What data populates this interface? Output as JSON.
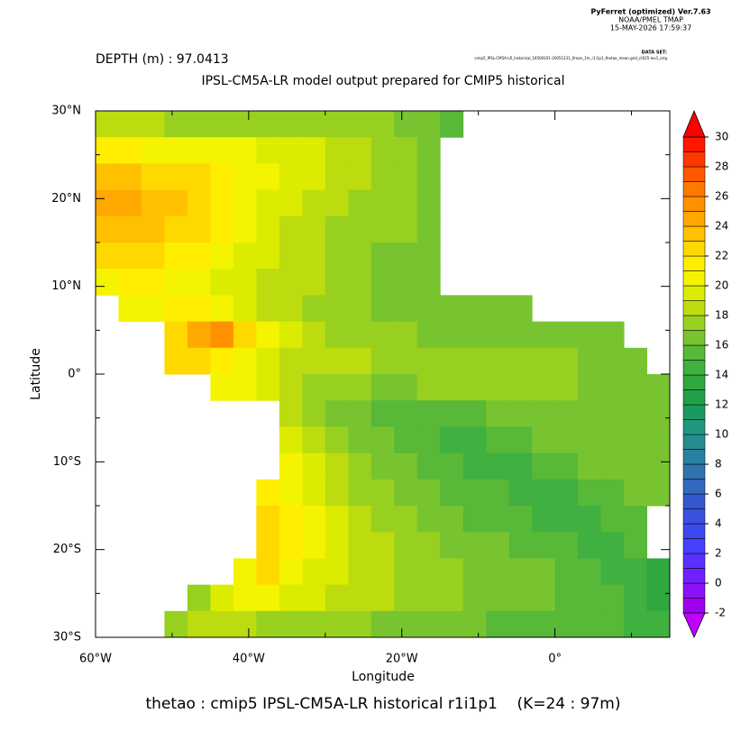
{
  "header": {
    "software": "PyFerret (optimized) Ver.7.63",
    "lab": "NOAA/PMEL TMAP",
    "date": "15-MAY-2026 17:59:37",
    "dataset_label": "DATA SET:",
    "dataset": "cmip5_IPSL-CM5A-LR_historical_18500101-20051231_0mon_1m_r1i1p1_thetao_mean.grid_ct025-lev1_orig",
    "depth": "DEPTH (m) : 97.0413"
  },
  "chart_data": {
    "type": "heatmap",
    "title": "IPSL-CM5A-LR model output prepared for CMIP5 historical",
    "x_label": "Longitude",
    "y_label": "Latitude",
    "footer": "thetao : cmip5 IPSL-CM5A-LR historical r1i1p1    (K=24 : 97m)",
    "x": [
      -58.5,
      -55.5,
      -52.5,
      -49.5,
      -46.5,
      -43.5,
      -40.5,
      -37.5,
      -34.5,
      -31.5,
      -28.5,
      -25.5,
      -22.5,
      -19.5,
      -16.5,
      -13.5,
      -10.5,
      -7.5,
      -4.5,
      -1.5,
      1.5,
      4.5,
      7.5,
      10.5,
      13.5
    ],
    "y": [
      28.5,
      25.5,
      22.5,
      19.5,
      16.5,
      13.5,
      10.5,
      7.5,
      4.5,
      1.5,
      -1.5,
      -4.5,
      -7.5,
      -10.5,
      -13.5,
      -16.5,
      -19.5,
      -22.5,
      -25.5,
      -28.5
    ],
    "z": [
      [
        18,
        18,
        18,
        17,
        17,
        17,
        17,
        17,
        17,
        17,
        17,
        17,
        17,
        16,
        16,
        15,
        null,
        null,
        null,
        null,
        null,
        null,
        null,
        null,
        null
      ],
      [
        21,
        21,
        20,
        20,
        20,
        20,
        20,
        19,
        19,
        19,
        18,
        18,
        17,
        17,
        16,
        null,
        null,
        null,
        null,
        null,
        null,
        null,
        null,
        null,
        null
      ],
      [
        23,
        23,
        22,
        22,
        22,
        21,
        20,
        20,
        19,
        19,
        18,
        18,
        17,
        17,
        16,
        null,
        null,
        null,
        null,
        null,
        null,
        null,
        null,
        null,
        null
      ],
      [
        24,
        24,
        23,
        23,
        22,
        21,
        20,
        19,
        19,
        18,
        18,
        17,
        17,
        17,
        16,
        null,
        null,
        null,
        null,
        null,
        null,
        null,
        null,
        null,
        null
      ],
      [
        23,
        23,
        23,
        22,
        22,
        21,
        20,
        19,
        18,
        18,
        17,
        17,
        17,
        17,
        16,
        null,
        null,
        null,
        null,
        null,
        null,
        null,
        null,
        null,
        null
      ],
      [
        22,
        22,
        22,
        21,
        21,
        20,
        19,
        19,
        18,
        18,
        17,
        17,
        16,
        16,
        16,
        null,
        null,
        null,
        null,
        null,
        null,
        null,
        null,
        null,
        null
      ],
      [
        20,
        21,
        21,
        20,
        20,
        19,
        19,
        18,
        18,
        18,
        17,
        17,
        16,
        16,
        16,
        null,
        null,
        null,
        null,
        null,
        null,
        null,
        null,
        null,
        null
      ],
      [
        null,
        20,
        20,
        21,
        21,
        20,
        19,
        18,
        18,
        17,
        17,
        17,
        16,
        16,
        16,
        16,
        16,
        16,
        16,
        null,
        null,
        null,
        null,
        null,
        null
      ],
      [
        null,
        null,
        null,
        22,
        24,
        25,
        22,
        20,
        19,
        18,
        17,
        17,
        17,
        17,
        16,
        16,
        16,
        16,
        16,
        16,
        16,
        16,
        16,
        null,
        null
      ],
      [
        null,
        null,
        null,
        22,
        22,
        21,
        20,
        19,
        18,
        18,
        18,
        18,
        17,
        17,
        17,
        17,
        17,
        17,
        17,
        17,
        17,
        16,
        16,
        16,
        null
      ],
      [
        null,
        null,
        null,
        null,
        null,
        20,
        20,
        19,
        18,
        17,
        17,
        17,
        16,
        16,
        17,
        17,
        17,
        17,
        17,
        17,
        17,
        16,
        16,
        16,
        16
      ],
      [
        null,
        null,
        null,
        null,
        null,
        null,
        null,
        null,
        18,
        17,
        16,
        16,
        15,
        15,
        15,
        15,
        15,
        16,
        16,
        16,
        16,
        16,
        16,
        16,
        16
      ],
      [
        null,
        null,
        null,
        null,
        null,
        null,
        null,
        null,
        19,
        18,
        17,
        16,
        16,
        15,
        15,
        14,
        14,
        15,
        15,
        16,
        16,
        16,
        16,
        16,
        16
      ],
      [
        null,
        null,
        null,
        null,
        null,
        null,
        null,
        null,
        20,
        19,
        18,
        17,
        16,
        16,
        15,
        15,
        14,
        14,
        14,
        15,
        15,
        16,
        16,
        16,
        16
      ],
      [
        null,
        null,
        null,
        null,
        null,
        null,
        null,
        21,
        20,
        19,
        18,
        17,
        17,
        16,
        16,
        15,
        15,
        15,
        14,
        14,
        14,
        15,
        15,
        16,
        16
      ],
      [
        null,
        null,
        null,
        null,
        null,
        null,
        null,
        22,
        21,
        20,
        19,
        18,
        17,
        17,
        16,
        16,
        15,
        15,
        15,
        14,
        14,
        14,
        15,
        15,
        null
      ],
      [
        null,
        null,
        null,
        null,
        null,
        null,
        null,
        22,
        21,
        20,
        19,
        18,
        18,
        17,
        17,
        16,
        16,
        16,
        15,
        15,
        15,
        14,
        14,
        15,
        null
      ],
      [
        null,
        null,
        null,
        null,
        null,
        null,
        20,
        22,
        20,
        19,
        19,
        18,
        18,
        17,
        17,
        17,
        16,
        16,
        16,
        16,
        15,
        15,
        14,
        14,
        13
      ],
      [
        null,
        null,
        null,
        null,
        17,
        19,
        20,
        20,
        19,
        19,
        18,
        18,
        18,
        17,
        17,
        17,
        16,
        16,
        16,
        16,
        15,
        15,
        15,
        14,
        13
      ],
      [
        null,
        null,
        null,
        17,
        18,
        18,
        18,
        17,
        17,
        17,
        17,
        17,
        16,
        16,
        16,
        16,
        16,
        15,
        15,
        15,
        15,
        15,
        15,
        14,
        14
      ]
    ],
    "xlim": [
      -60,
      15
    ],
    "ylim": [
      -30,
      30
    ],
    "xticks": [
      {
        "value": -60,
        "label": "60°W"
      },
      {
        "value": -40,
        "label": "40°W"
      },
      {
        "value": -20,
        "label": "20°W"
      },
      {
        "value": 0,
        "label": "0°"
      }
    ],
    "xminor": [
      -50,
      -30,
      -10,
      10
    ],
    "yticks": [
      {
        "value": 30,
        "label": "30°N"
      },
      {
        "value": 20,
        "label": "20°N"
      },
      {
        "value": 10,
        "label": "10°N"
      },
      {
        "value": 0,
        "label": "0°"
      },
      {
        "value": -10,
        "label": "10°S"
      },
      {
        "value": -20,
        "label": "20°S"
      },
      {
        "value": -30,
        "label": "30°S"
      }
    ],
    "yminor": [
      25,
      15,
      5,
      -5,
      -15,
      -25
    ],
    "clim": [
      -2,
      30
    ],
    "cticks": [
      -2,
      0,
      2,
      4,
      6,
      8,
      10,
      12,
      14,
      16,
      18,
      20,
      22,
      24,
      26,
      28,
      30
    ],
    "colors": [
      "#a000f0",
      "#8c10f8",
      "#7020ff",
      "#5a30ff",
      "#4840ff",
      "#3c48f0",
      "#3a50e0",
      "#3558d0",
      "#3268c0",
      "#2e74b0",
      "#2a80a0",
      "#268c90",
      "#209880",
      "#1a9a60",
      "#20a048",
      "#30a840",
      "#40b040",
      "#58b838",
      "#78c430",
      "#98d020",
      "#bcdc10",
      "#dcec00",
      "#f4f400",
      "#ffee00",
      "#ffd800",
      "#ffc000",
      "#ffa800",
      "#ff9000",
      "#ff7800",
      "#ff5800",
      "#ff3800",
      "#ff1800"
    ],
    "over_color": "#ff0000",
    "under_color": "#c000ff"
  }
}
